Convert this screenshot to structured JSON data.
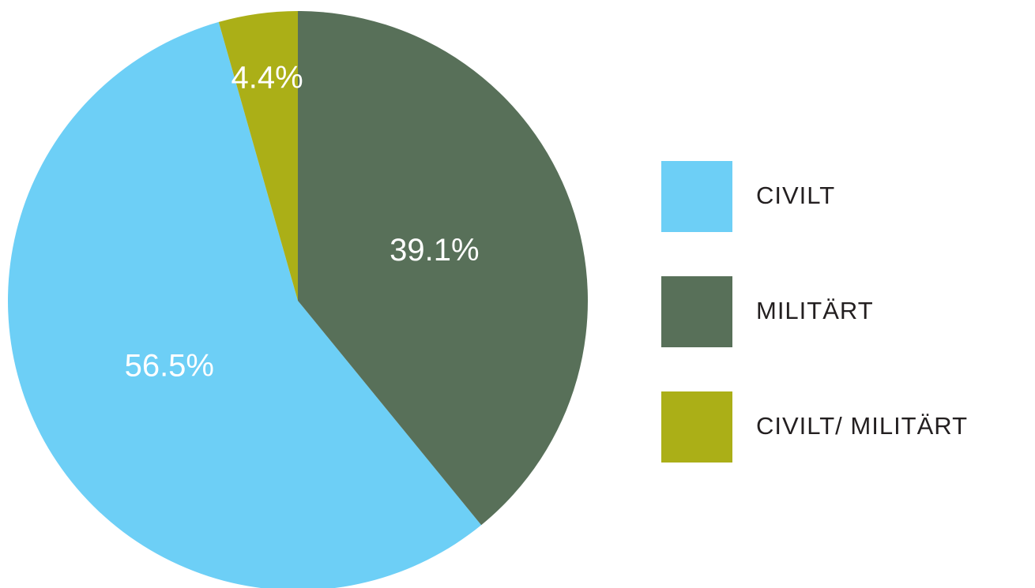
{
  "chart_data": {
    "type": "pie",
    "categories": [
      "CIVILT",
      "MILITÄRT",
      "CIVILT/ MILITÄRT"
    ],
    "values": [
      56.5,
      39.1,
      4.4
    ],
    "value_labels": [
      "56.5%",
      "39.1%",
      "4.4%"
    ],
    "colors": [
      "#6dcff6",
      "#587059",
      "#abaf17"
    ],
    "legend": "right"
  }
}
